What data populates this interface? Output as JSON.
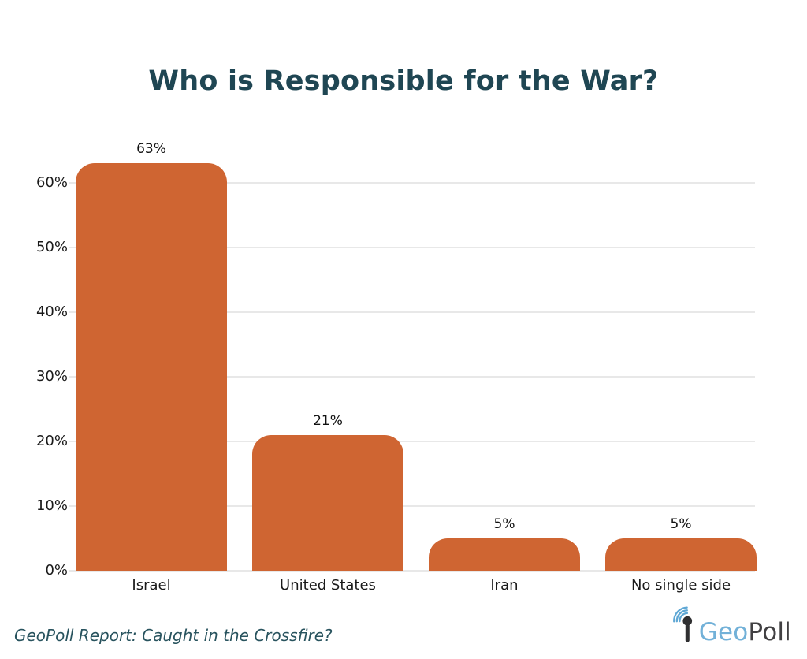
{
  "title": "Who is Responsible for the War?",
  "chart_data": {
    "type": "bar",
    "title": "Who is Responsible for the War?",
    "categories": [
      "Israel",
      "United States",
      "Iran",
      "No single side"
    ],
    "values": [
      63,
      21,
      5,
      5
    ],
    "value_labels": [
      "63%",
      "21%",
      "5%",
      "5%"
    ],
    "yticks": [
      0,
      10,
      20,
      30,
      40,
      50,
      60
    ],
    "ytick_labels": [
      "0%",
      "10%",
      "20%",
      "30%",
      "40%",
      "50%",
      "60%"
    ],
    "ylim": [
      0,
      65
    ],
    "grid": true,
    "legend": false,
    "bar_color": "#cf6532",
    "gridline_color": "#e8e8e8",
    "axis_label_color": "#1a1a1a"
  },
  "footer": {
    "caption": "GeoPoll Report: Caught in the Crossfire?",
    "logo": {
      "part1": "Geo",
      "part2": "Poll",
      "part1_color": "#72b1d8",
      "part2_color": "#414042",
      "icon": "antenna-signal-icon",
      "icon_pin_color": "#2f2f31",
      "icon_arc_color": "#5fa8d5"
    }
  },
  "colors": {
    "title": "#1f4653",
    "caption": "#28535e",
    "background": "#ffffff"
  }
}
